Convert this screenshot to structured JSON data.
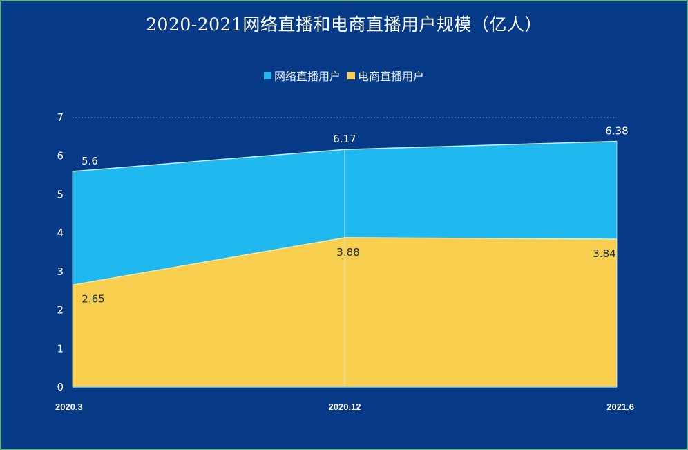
{
  "chart_data": {
    "type": "area",
    "title": "2020-2021网络直播和电商直播用户规模（亿人）",
    "categories": [
      "2020.3",
      "2020.12",
      "2021.6"
    ],
    "series": [
      {
        "name": "网络直播用户",
        "values": [
          5.6,
          6.17,
          6.38
        ],
        "color": "#1fb9ef"
      },
      {
        "name": "电商直播用户",
        "values": [
          2.65,
          3.88,
          3.84
        ],
        "color": "#f9cf4f"
      }
    ],
    "ylim": [
      0,
      7
    ],
    "yticks": [
      "0",
      "1",
      "2",
      "3",
      "4",
      "5",
      "6",
      "7"
    ],
    "data_labels_top": [
      "5.6",
      "6.17",
      "6.38"
    ],
    "data_labels_bottom": [
      "2.65",
      "3.88",
      "3.84"
    ],
    "grid": true,
    "legend_position": "top-center"
  },
  "colors": {
    "background": "#063a86",
    "border": "#5fae8a"
  }
}
